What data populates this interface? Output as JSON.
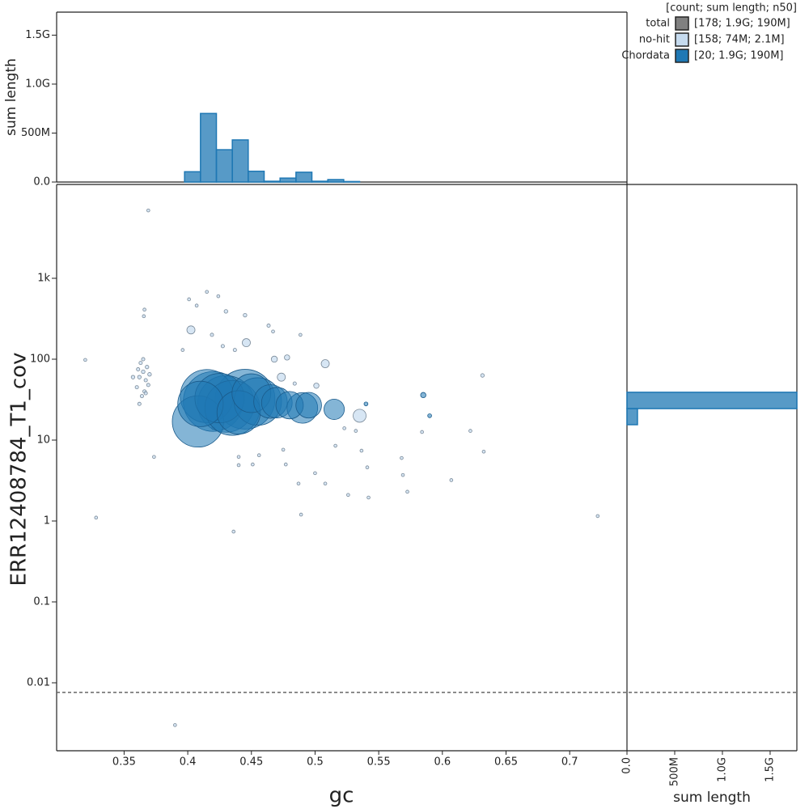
{
  "chart_data": [
    {
      "type": "scatter",
      "x_label": "gc",
      "y_label": "ERR12408784_T1_cov",
      "xlim": [
        0.297,
        0.745
      ],
      "ylim": [
        0.001445,
        14454
      ],
      "log_y": true,
      "xticks": [
        0.35,
        0.4,
        0.45,
        0.5,
        0.55,
        0.6,
        0.65,
        0.7
      ],
      "yticks": [
        0.01,
        0.1,
        1,
        10,
        100,
        {
          "value": 1000,
          "label": "1k"
        }
      ],
      "zero_threshold": 0.0076,
      "legend": {
        "title": "[count; sum length; n50]",
        "total": {
          "name": "total",
          "color": "#808080",
          "stats": "[178; 1.9G; 190M]"
        }
      },
      "series": [
        {
          "name": "no-hit",
          "stats": "[158; 74M; 2.1M]",
          "color": "#c6dbef",
          "x": [
            0.3195,
            0.369,
            0.366,
            0.3655,
            0.362,
            0.365,
            0.367,
            0.36,
            0.368,
            0.363,
            0.366,
            0.364,
            0.37,
            0.361,
            0.357,
            0.369,
            0.365,
            0.362,
            0.367,
            0.3735,
            0.328,
            0.415,
            0.401,
            0.407,
            0.4025,
            0.424,
            0.43,
            0.445,
            0.419,
            0.4275,
            0.446,
            0.437,
            0.4635,
            0.467,
            0.4885,
            0.468,
            0.478,
            0.4735,
            0.484,
            0.501,
            0.508,
            0.396,
            0.42,
            0.44,
            0.456,
            0.475,
            0.477,
            0.5,
            0.487,
            0.508,
            0.526,
            0.542,
            0.489,
            0.436,
            0.532,
            0.5365,
            0.541,
            0.568,
            0.569,
            0.5725,
            0.584,
            0.622,
            0.6325,
            0.607,
            0.6315,
            0.535,
            0.722,
            0.39,
            0.523,
            0.516,
            0.451,
            0.44
          ],
          "values": [
            98,
            6900,
            410,
            340,
            60,
            70,
            55,
            45,
            80,
            90,
            40,
            35,
            65,
            75,
            60,
            48,
            100,
            28,
            38,
            6.2,
            1.1,
            680,
            550,
            460,
            230,
            600,
            390,
            350,
            200,
            145,
            160,
            130,
            260,
            220,
            200,
            100,
            105,
            60,
            50,
            47,
            88,
            130,
            14,
            6.2,
            6.5,
            7.6,
            5,
            3.9,
            2.9,
            2.9,
            2.1,
            1.95,
            1.2,
            0.74,
            13,
            7.4,
            4.6,
            6,
            3.7,
            2.3,
            12.6,
            13,
            7.2,
            3.2,
            63,
            20,
            1.15,
            0.003,
            14,
            8.5,
            5,
            4.9
          ],
          "sizes": [
            500000,
            500000,
            500000,
            500000,
            700000,
            700000,
            600000,
            600000,
            700000,
            600000,
            600000,
            600000,
            700000,
            600000,
            700000,
            600000,
            600000,
            600000,
            600000,
            500000,
            500000,
            500000,
            500000,
            500000,
            3500000,
            500000,
            700000,
            700000,
            600000,
            600000,
            3500000,
            600000,
            600000,
            500000,
            500000,
            2000000,
            1500000,
            3500000,
            600000,
            1500000,
            3500000,
            500000,
            500000,
            500000,
            500000,
            500000,
            500000,
            500000,
            500000,
            500000,
            500000,
            500000,
            500000,
            500000,
            500000,
            500000,
            500000,
            500000,
            500000,
            500000,
            500000,
            500000,
            500000,
            500000,
            700000,
            9000000,
            500000,
            500000,
            500000,
            500000,
            500000,
            500000
          ]
        },
        {
          "name": "Chordata",
          "stats": "[20; 1.9G; 190M]",
          "color": "#1f78b4",
          "x": [
            0.42,
            0.445,
            0.43,
            0.415,
            0.408,
            0.435,
            0.425,
            0.455,
            0.41,
            0.44,
            0.45,
            0.465,
            0.47,
            0.49,
            0.48,
            0.495,
            0.515,
            0.585,
            0.59,
            0.54
          ],
          "values": [
            30,
            32,
            28,
            35,
            17,
            25,
            33,
            30,
            28,
            22,
            38,
            30,
            29,
            25,
            27,
            27,
            24,
            36,
            20,
            28
          ],
          "sizes": [
            190000000,
            190000000,
            170000000,
            150000000,
            140000000,
            160000000,
            130000000,
            120000000,
            110000000,
            100000000,
            80000000,
            60000000,
            50000000,
            50000000,
            40000000,
            35000000,
            22000000,
            1500000,
            800000,
            800000
          ]
        }
      ]
    },
    {
      "type": "histogram",
      "orientation": "vertical",
      "y_label": "sum length",
      "color": "#1f78b4",
      "bins": [
        0.3975,
        0.41,
        0.4225,
        0.435,
        0.4475,
        0.46,
        0.4725,
        0.485,
        0.4975,
        0.51,
        0.5225,
        0.535,
        0.5475
      ],
      "values": [
        105000000,
        700000000,
        330000000,
        430000000,
        110000000,
        8000000,
        40000000,
        100000000,
        8000000,
        25000000,
        5000000,
        0
      ],
      "ylim": [
        0,
        1735000000
      ],
      "yticks": [
        {
          "value": 0,
          "label": "0.0"
        },
        {
          "value": 500000000,
          "label": "500M"
        },
        {
          "value": 1000000000,
          "label": "1.0G"
        },
        {
          "value": 1500000000,
          "label": "1.5G"
        }
      ]
    },
    {
      "type": "histogram",
      "orientation": "horizontal",
      "x_label": "sum length",
      "color": "#1f78b4",
      "bins": [
        15.5,
        24.5,
        39
      ],
      "values": [
        110000000,
        1780000000
      ],
      "xlim": [
        0,
        1780000000
      ],
      "xticks": [
        {
          "value": 0,
          "label": "0.0"
        },
        {
          "value": 500000000,
          "label": "500M"
        },
        {
          "value": 1000000000,
          "label": "1.0G"
        },
        {
          "value": 1500000000,
          "label": "1.5G"
        }
      ]
    }
  ]
}
